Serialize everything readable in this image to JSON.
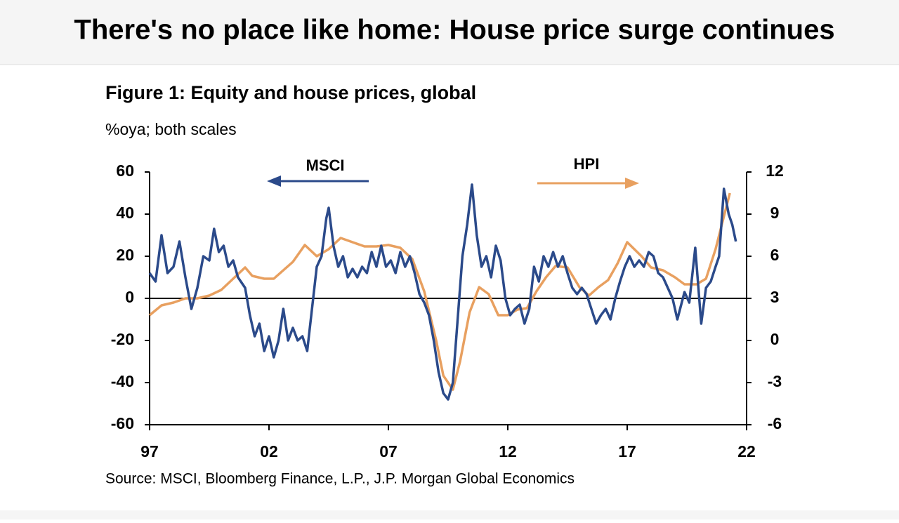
{
  "header": {
    "title": "There's no place like home: House price surge continues"
  },
  "chart_data": {
    "type": "line",
    "title": "Figure 1: Equity and house prices, global",
    "subtitle": "%oya; both scales",
    "source": "Source: MSCI, Bloomberg Finance, L.P., J.P. Morgan Global Economics",
    "annotations": [
      "MSCI",
      "HPI"
    ],
    "xlim": [
      1997,
      2022
    ],
    "xticks": [
      {
        "value": 1997,
        "label": "97"
      },
      {
        "value": 2002,
        "label": "02"
      },
      {
        "value": 2007,
        "label": "07"
      },
      {
        "value": 2012,
        "label": "12"
      },
      {
        "value": 2017,
        "label": "17"
      },
      {
        "value": 2022,
        "label": "22"
      }
    ],
    "ylim": [
      -60,
      60
    ],
    "yticks": [
      -60,
      -40,
      -20,
      0,
      20,
      40,
      60
    ],
    "y2lim": [
      -6,
      12
    ],
    "y2ticks": [
      -6,
      -3,
      0,
      3,
      6,
      9,
      12
    ],
    "series": [
      {
        "name": "MSCI",
        "color": "#2b4a8a",
        "axis": "y",
        "x": [
          1997.0,
          1997.25,
          1997.5,
          1997.75,
          1998.0,
          1998.25,
          1998.5,
          1998.75,
          1999.0,
          1999.25,
          1999.5,
          1999.7,
          1999.9,
          2000.1,
          2000.3,
          2000.5,
          2000.7,
          2001.0,
          2001.2,
          2001.4,
          2001.6,
          2001.8,
          2002.0,
          2002.2,
          2002.4,
          2002.6,
          2002.8,
          2003.0,
          2003.2,
          2003.4,
          2003.6,
          2003.8,
          2004.0,
          2004.2,
          2004.4,
          2004.5,
          2004.7,
          2004.9,
          2005.1,
          2005.3,
          2005.5,
          2005.7,
          2005.9,
          2006.1,
          2006.3,
          2006.5,
          2006.7,
          2006.9,
          2007.1,
          2007.3,
          2007.5,
          2007.7,
          2007.9,
          2008.1,
          2008.3,
          2008.5,
          2008.7,
          2008.9,
          2009.1,
          2009.3,
          2009.5,
          2009.7,
          2009.9,
          2010.1,
          2010.3,
          2010.5,
          2010.7,
          2010.9,
          2011.1,
          2011.3,
          2011.5,
          2011.7,
          2011.9,
          2012.1,
          2012.3,
          2012.5,
          2012.7,
          2012.9,
          2013.1,
          2013.3,
          2013.5,
          2013.7,
          2013.9,
          2014.1,
          2014.3,
          2014.5,
          2014.7,
          2014.9,
          2015.1,
          2015.3,
          2015.5,
          2015.7,
          2015.9,
          2016.1,
          2016.3,
          2016.5,
          2016.7,
          2016.9,
          2017.1,
          2017.3,
          2017.5,
          2017.7,
          2017.9,
          2018.1,
          2018.3,
          2018.5,
          2018.7,
          2018.9,
          2019.1,
          2019.4,
          2019.6,
          2019.85,
          2020.1,
          2020.3,
          2020.5,
          2020.7,
          2020.85,
          2021.05,
          2021.25,
          2021.4,
          2021.55
        ],
        "values": [
          12,
          8,
          30,
          12,
          15,
          27,
          10,
          -5,
          5,
          20,
          18,
          33,
          22,
          25,
          15,
          18,
          10,
          5,
          -8,
          -18,
          -12,
          -25,
          -18,
          -28,
          -20,
          -5,
          -20,
          -14,
          -20,
          -18,
          -25,
          -5,
          15,
          20,
          38,
          43,
          25,
          15,
          20,
          10,
          14,
          10,
          15,
          12,
          22,
          15,
          25,
          15,
          18,
          12,
          22,
          15,
          20,
          12,
          2,
          -2,
          -8,
          -20,
          -35,
          -45,
          -48,
          -40,
          -10,
          20,
          35,
          54,
          30,
          15,
          20,
          10,
          25,
          18,
          0,
          -8,
          -5,
          -3,
          -12,
          -5,
          15,
          8,
          20,
          15,
          22,
          15,
          20,
          12,
          5,
          2,
          5,
          2,
          -5,
          -12,
          -8,
          -5,
          -10,
          0,
          8,
          15,
          20,
          15,
          18,
          15,
          22,
          20,
          12,
          10,
          5,
          0,
          -10,
          3,
          -2,
          24,
          -12,
          5,
          8,
          15,
          20,
          52,
          40,
          35,
          27
        ]
      },
      {
        "name": "HPI",
        "color": "#e8a060",
        "axis": "y2",
        "x": [
          1997.0,
          1997.5,
          1998.0,
          1998.5,
          1999.0,
          1999.5,
          2000.0,
          2000.5,
          2001.0,
          2001.3,
          2001.8,
          2002.2,
          2002.6,
          2003.0,
          2003.5,
          2004.0,
          2004.5,
          2005.0,
          2005.5,
          2006.0,
          2006.5,
          2007.0,
          2007.5,
          2008.0,
          2008.5,
          2009.0,
          2009.3,
          2009.7,
          2010.0,
          2010.4,
          2010.8,
          2011.2,
          2011.6,
          2012.0,
          2012.4,
          2012.8,
          2013.2,
          2013.6,
          2014.0,
          2014.5,
          2015.0,
          2015.4,
          2015.8,
          2016.2,
          2016.6,
          2017.0,
          2017.3,
          2017.6,
          2018.0,
          2018.5,
          2019.0,
          2019.4,
          2019.9,
          2020.3,
          2020.7,
          2021.0,
          2021.3
        ],
        "values": [
          1.8,
          2.5,
          2.7,
          3.0,
          3.0,
          3.2,
          3.6,
          4.4,
          5.2,
          4.6,
          4.4,
          4.4,
          5.0,
          5.6,
          6.8,
          6.0,
          6.5,
          7.3,
          7.0,
          6.7,
          6.7,
          6.8,
          6.6,
          5.8,
          3.5,
          0,
          -2.5,
          -3.5,
          -1.5,
          2,
          3.8,
          3.3,
          1.8,
          1.8,
          2.2,
          2.3,
          3.5,
          4.5,
          5.3,
          5.2,
          3.8,
          3.2,
          3.8,
          4.3,
          5.5,
          7.0,
          6.5,
          6.0,
          5.2,
          5.0,
          4.5,
          4.0,
          4.0,
          4.4,
          6.5,
          8.5,
          10.5
        ]
      }
    ]
  }
}
